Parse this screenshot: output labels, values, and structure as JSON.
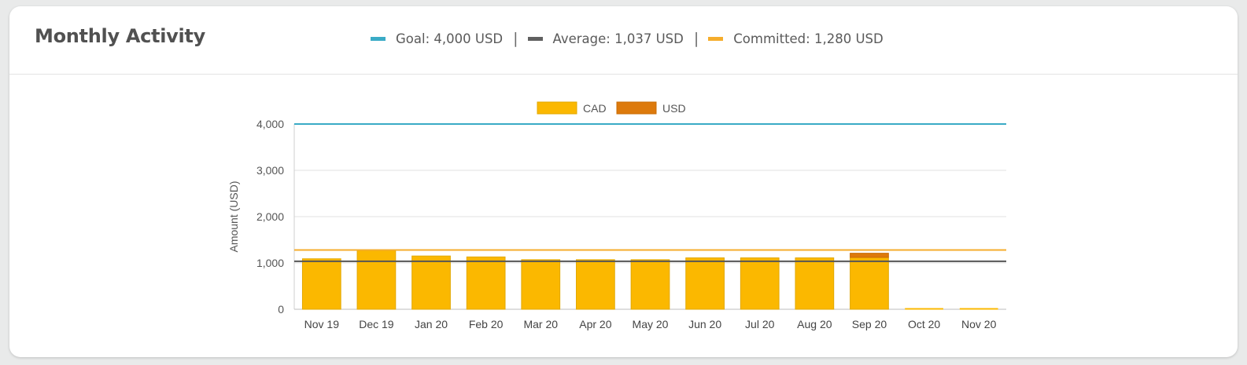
{
  "card": {
    "title": "Monthly Activity"
  },
  "summary": {
    "goal_label": "Goal: 4,000 USD",
    "average_label": "Average: 1,037 USD",
    "committed_label": "Committed: 1,280 USD",
    "separator": "|",
    "colors": {
      "goal": "#3aabc6",
      "average": "#606060",
      "committed": "#f5ad2c"
    }
  },
  "chart_data": {
    "type": "bar",
    "stacked": true,
    "categories": [
      "Nov 19",
      "Dec 19",
      "Jan 20",
      "Feb 20",
      "Mar 20",
      "Apr 20",
      "May 20",
      "Jun 20",
      "Jul 20",
      "Aug 20",
      "Sep 20",
      "Oct 20",
      "Nov 20"
    ],
    "series": [
      {
        "name": "CAD",
        "color": "#fbb800",
        "values": [
          1090,
          1270,
          1150,
          1130,
          1070,
          1070,
          1070,
          1110,
          1110,
          1110,
          1120,
          0,
          0
        ]
      },
      {
        "name": "USD",
        "color": "#dd7a0c",
        "values": [
          0,
          0,
          0,
          0,
          0,
          0,
          0,
          0,
          0,
          0,
          90,
          0,
          0
        ]
      }
    ],
    "reference_lines": [
      {
        "name": "Goal",
        "value": 4000,
        "color": "#3aabc6"
      },
      {
        "name": "Committed",
        "value": 1280,
        "color": "#f5ad2c"
      },
      {
        "name": "Average",
        "value": 1037,
        "color": "#555555"
      }
    ],
    "ylabel": "Amount (USD)",
    "xlabel": "",
    "ylim": [
      0,
      4000
    ],
    "yticks": [
      0,
      1000,
      2000,
      3000,
      4000
    ],
    "ytick_labels": [
      "0",
      "1,000",
      "2,000",
      "3,000",
      "4,000"
    ],
    "legend": {
      "placement": "top-center",
      "entries": [
        "CAD",
        "USD"
      ]
    },
    "grid": true
  }
}
